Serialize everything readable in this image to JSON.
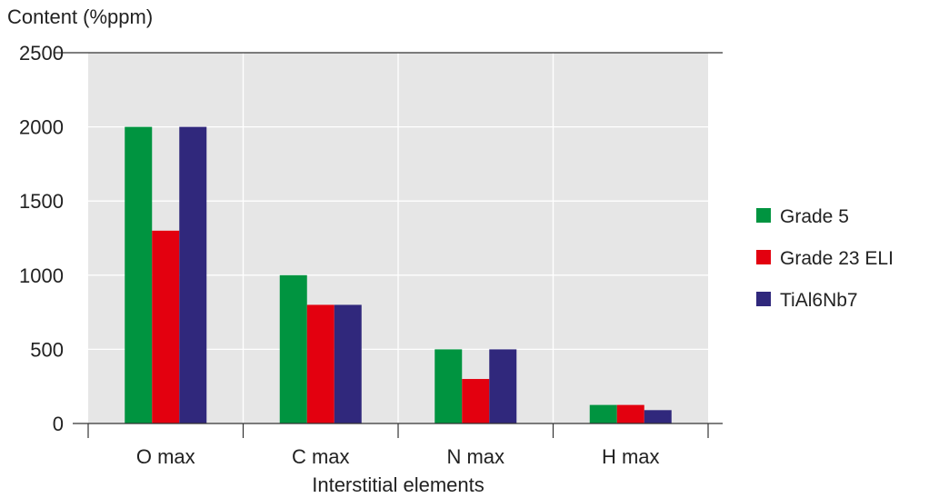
{
  "chart_data": {
    "type": "bar",
    "title": "",
    "ylabel": "Content (%ppm)",
    "xlabel": "Interstitial elements",
    "categories": [
      "O max",
      "C max",
      "N max",
      "H max"
    ],
    "series": [
      {
        "name": "Grade 5",
        "values": [
          2000,
          1000,
          500,
          125
        ],
        "color": "#009440"
      },
      {
        "name": "Grade 23 ELI",
        "values": [
          1300,
          800,
          300,
          125
        ],
        "color": "#e3000f"
      },
      {
        "name": "TiAl6Nb7",
        "values": [
          2000,
          800,
          500,
          90
        ],
        "color": "#30287c"
      }
    ],
    "ylim": [
      0,
      2500
    ],
    "yticks": [
      0,
      500,
      1000,
      1500,
      2000,
      2500
    ],
    "grid": true,
    "plot_background": "#e6e6e6",
    "legend_position": "right"
  }
}
